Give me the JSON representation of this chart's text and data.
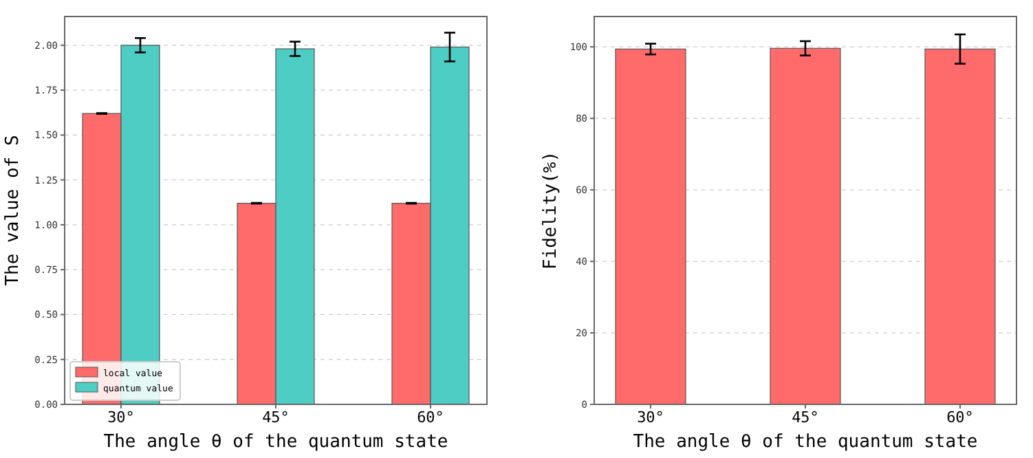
{
  "chart_data": [
    {
      "type": "bar",
      "xlabel": "The angle θ of the quantum state",
      "ylabel": "The value of S",
      "categories": [
        "30°",
        "45°",
        "60°"
      ],
      "series": [
        {
          "name": "local value",
          "color": "#ff6b6b",
          "values": [
            1.62,
            1.12,
            1.12
          ],
          "errors": [
            0.002,
            0.002,
            0.002
          ]
        },
        {
          "name": "quantum value",
          "color": "#4ecdc4",
          "values": [
            2.0,
            1.98,
            1.99
          ],
          "errors": [
            0.04,
            0.04,
            0.08
          ]
        }
      ],
      "ylim": [
        0,
        2.16
      ],
      "yticks": [
        {
          "value": 0,
          "label": "0.00"
        },
        {
          "value": 0.25,
          "label": "0.25"
        },
        {
          "value": 0.5,
          "label": "0.50"
        },
        {
          "value": 0.75,
          "label": "0.75"
        },
        {
          "value": 1,
          "label": "1.00"
        },
        {
          "value": 1.25,
          "label": "1.25"
        },
        {
          "value": 1.5,
          "label": "1.50"
        },
        {
          "value": 1.75,
          "label": "1.75"
        },
        {
          "value": 2,
          "label": "2.00"
        }
      ],
      "grid": "y",
      "legend": "bottom left"
    },
    {
      "type": "bar",
      "xlabel": "The angle θ of the quantum state",
      "ylabel": "Fidelity(%)",
      "categories": [
        "30°",
        "45°",
        "60°"
      ],
      "series": [
        {
          "color": "#ff6b6b",
          "values": [
            99.4,
            99.6,
            99.4
          ],
          "errors": [
            1.5,
            2,
            4.1
          ]
        }
      ],
      "ylim": [
        0,
        108.5
      ],
      "yticks": [
        0,
        20,
        40,
        60,
        80,
        100
      ],
      "grid": "y"
    }
  ]
}
